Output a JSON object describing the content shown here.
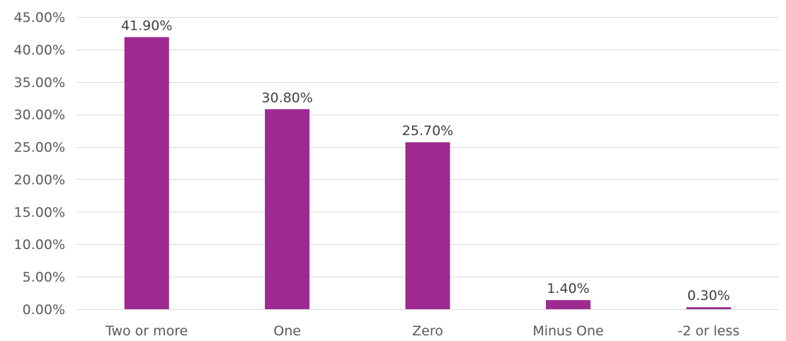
{
  "chart_data": {
    "type": "bar",
    "categories": [
      "Two or more",
      "One",
      "Zero",
      "Minus One",
      "-2 or less"
    ],
    "values": [
      41.9,
      30.8,
      25.7,
      1.4,
      0.3
    ],
    "data_labels": [
      "41.90%",
      "30.80%",
      "25.70%",
      "1.40%",
      "0.30%"
    ],
    "y_ticks": [
      0,
      5,
      10,
      15,
      20,
      25,
      30,
      35,
      40,
      45
    ],
    "y_tick_labels": [
      "0.00%",
      "5.00%",
      "10.00%",
      "15.00%",
      "20.00%",
      "25.00%",
      "30.00%",
      "35.00%",
      "40.00%",
      "45.00%"
    ],
    "ylim": [
      0,
      45
    ],
    "grid": true,
    "legend": "none",
    "bar_color": "#9e2a8f"
  }
}
